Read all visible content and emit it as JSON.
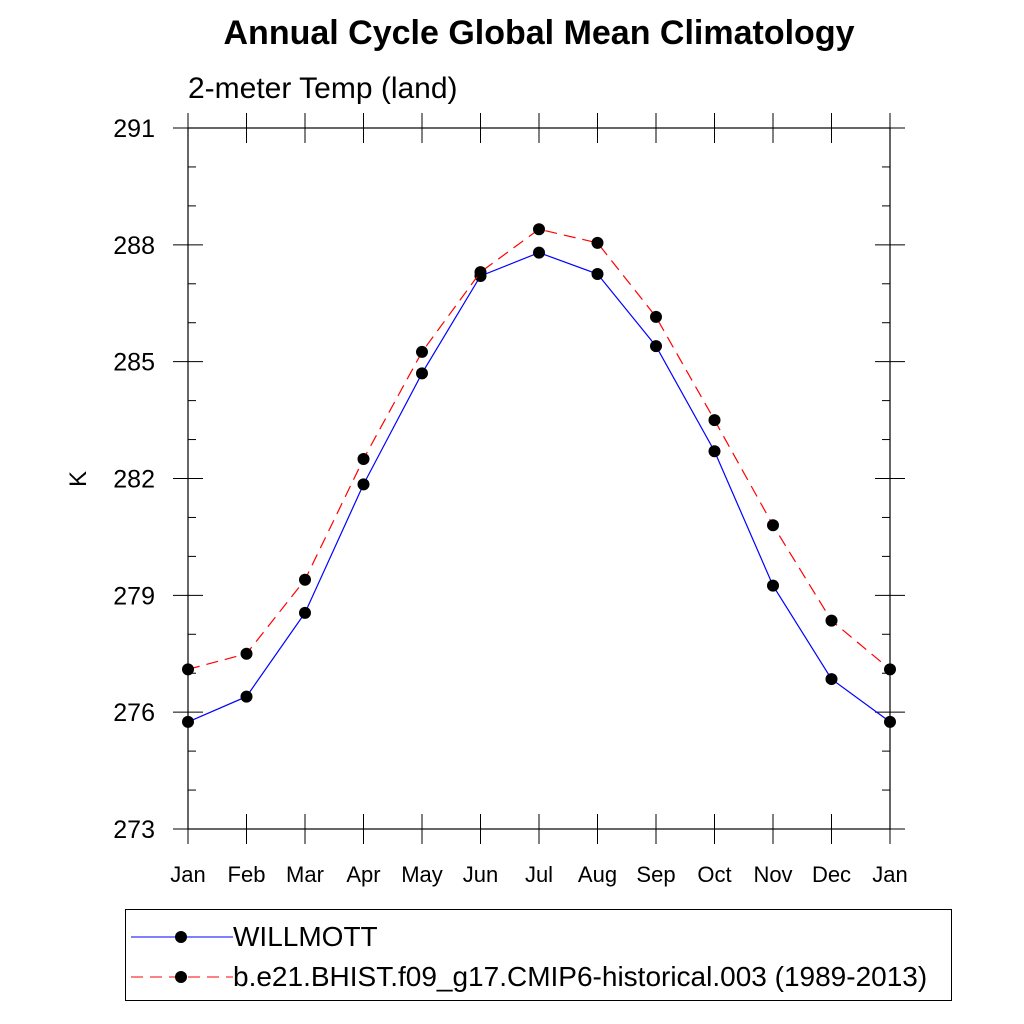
{
  "chart_data": {
    "type": "line",
    "title": "Annual Cycle Global Mean Climatology",
    "subtitle": "2-meter Temp (land)",
    "xlabel": "",
    "ylabel": "K",
    "categories": [
      "Jan",
      "Feb",
      "Mar",
      "Apr",
      "May",
      "Jun",
      "Jul",
      "Aug",
      "Sep",
      "Oct",
      "Nov",
      "Dec",
      "Jan"
    ],
    "ylim": [
      273,
      291
    ],
    "yticks": [
      273,
      276,
      279,
      282,
      285,
      288,
      291
    ],
    "grid": false,
    "legend_position": "bottom",
    "series": [
      {
        "name": "WILLMOTT",
        "color": "#0000ff",
        "line_style": "solid",
        "marker": "circle",
        "values": [
          275.75,
          276.4,
          278.55,
          281.85,
          284.7,
          287.2,
          287.8,
          287.25,
          285.4,
          282.7,
          279.25,
          276.85,
          275.75
        ]
      },
      {
        "name": "b.e21.BHIST.f09_g17.CMIP6-historical.003 (1989-2013)",
        "color": "#ff0000",
        "line_style": "dashed",
        "marker": "circle",
        "values": [
          277.1,
          277.5,
          279.4,
          282.5,
          285.25,
          287.3,
          288.4,
          288.05,
          286.15,
          283.5,
          280.8,
          278.35,
          277.1
        ]
      }
    ]
  }
}
